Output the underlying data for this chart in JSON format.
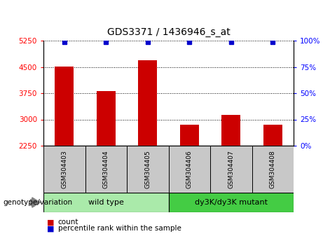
{
  "title": "GDS3371 / 1436946_s_at",
  "samples": [
    "GSM304403",
    "GSM304404",
    "GSM304405",
    "GSM304406",
    "GSM304407",
    "GSM304408"
  ],
  "counts": [
    4520,
    3820,
    4700,
    2860,
    3130,
    2850
  ],
  "percentile_ranks": [
    99,
    99,
    99,
    99,
    99,
    99
  ],
  "ylim_left": [
    2250,
    5250
  ],
  "yticks_left": [
    2250,
    3000,
    3750,
    4500,
    5250
  ],
  "ylim_right": [
    0,
    100
  ],
  "yticks_right": [
    0,
    25,
    50,
    75,
    100
  ],
  "bar_color": "#CC0000",
  "percentile_color": "#0000CC",
  "bar_width": 0.45,
  "wt_color": "#AAEAAA",
  "mut_color": "#44CC44",
  "genotype_label": "genotype/variation",
  "legend_count_label": "count",
  "legend_percentile_label": "percentile rank within the sample",
  "fig_width": 4.61,
  "fig_height": 3.54,
  "dpi": 100
}
